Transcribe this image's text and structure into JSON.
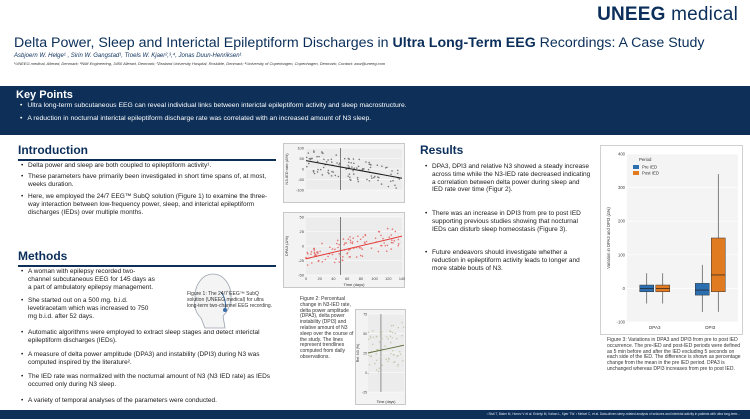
{
  "brand": {
    "logo_bold": "UNEEG",
    "logo_light": "medical"
  },
  "title": {
    "pre": "Delta Power, Sleep and Interictal Epileptiform Discharges in ",
    "hl": "Ultra Long-Term EEG",
    "post": " Recordings: A Case Study"
  },
  "authors": "Asbjoern W. Helge¹ , Sirin W. Gangstad¹, Troels W. Kjaer²,³,⁴, Jonas Duun-Henriksen¹",
  "affiliations": "¹UNEEG medical, Allerød, Denmark; ²NMI Engineering, 3450 Allerød, Denmark; ³Zealand University Hospital, Roskilde, Denmark; ⁴University of Copenhagen, Copenhagen, Denmark; Contact: asw@uneeg.com",
  "key_points": {
    "heading": "Key Points",
    "items": [
      "Ultra long-term subcutaneous EEG can reveal individual links between interictal epileptiform activity and sleep macrostructure.",
      "A reduction in nocturnal interictal epileptiform discharge rate was correlated with an increased amount of N3 sleep."
    ]
  },
  "introduction": {
    "heading": "Introduction",
    "items": [
      "Delta power and sleep are both coupled to epileptiform activity¹.",
      "These parameters have primarily been investigated in short time spans of, at most, weeks duration.",
      "Here, we employed the 24/7 EEG™ SubQ solution (Figure 1) to examine the three-way interaction between low-frequency power, sleep, and interictal epileptiform discharges (IEDs) over multiple months."
    ]
  },
  "methods": {
    "heading": "Methods",
    "items": [
      "A woman with epilepsy recorded two-channel subcutaneous EEG for 145 days as a part of ambulatory epilepsy management.",
      "She started out on a 500 mg. b.i.d. levetiracetam which was increased to 750 mg b.i.d. after 52 days.",
      "Automatic algorithms were employed to extract sleep stages and detect interictal epileptiform discharges (IEDs).",
      "A measure of delta power amplitude (DPA3) and instability (DPI3) during N3 was computed inspired by the literature².",
      "The IED rate was normalized with the nocturnal amount of N3 (N3 IED rate) as IEDs occurred only during N3 sleep.",
      "A variety of temporal analyses of the parameters were conducted."
    ],
    "fig1_caption": "Figure 1: The 24/7 EEG™ SubQ solution (UNEEG medical) for ultra long-term two-channel EEG recording."
  },
  "results": {
    "heading": "Results",
    "items": [
      "DPA3, DPI3 and relative N3 showed a steady increase across time while the N3-IED rate decreased indicating a correlation between delta power during sleep and IED rate over time (Figur 2).",
      "There was an increase in DPI3 from pre to post IED supporting previous studies showing that nocturnal IEDs can disturb sleep homeostasis (Figure 3).",
      "Future endeavors should investigate whether a reduction in epileptiform activity leads to longer and more stable bouts of N3."
    ],
    "fig2_caption": "Figure 2: Percentual change in N3-IED rate, delta power amplitude (DPA3), delta power instability (DPI3) and relative amount of N3 sleep over the course of the study. The lines represent trendlines computed from daily observations.",
    "fig3_caption": "Figure 3: Variations in DPA3 and DPI3 from pre to post IED occurrence. The pre-IED and post-IED periods were defined as 5 min before and after the IED excluding 5 seconds on each side of the IED. The difference is shown as percentage change from the mean in the pre IED period. DPA3 is unchanged whereas DPI3 increases from pre to post IED."
  },
  "figure2": {
    "xlabel": "Time (days)",
    "xticks": [
      "0",
      "20",
      "40",
      "60",
      "80",
      "100",
      "120",
      "140"
    ],
    "panels": [
      {
        "ylabel": "N3-IED rate (Δ%)",
        "yticks": [
          "100",
          "50",
          "0",
          "-50",
          "-100"
        ],
        "color": "#7a7a7a",
        "line": "#1a1a1a"
      },
      {
        "ylabel": "DPA3 (Δ%)",
        "yticks": [
          "50",
          "25",
          "0",
          "-25",
          "-50"
        ],
        "color": "#e57373",
        "line": "#e53935"
      },
      {
        "ylabel": "DPI3 (Δ%)",
        "yticks": [
          "50",
          "25",
          "0",
          "-25",
          "-50"
        ],
        "color": "#9e9e9e",
        "line": "#b23b3b"
      },
      {
        "ylabel": "Rel. N3 (%)",
        "yticks": [
          "75",
          "50",
          "25",
          "0",
          "-25"
        ],
        "color": "#bfc4a8",
        "line": "#5a6b35"
      }
    ]
  },
  "chart_data": {
    "type": "box",
    "title": "",
    "legend": {
      "title": "Period",
      "entries": [
        "Pre IED",
        "Post IED"
      ],
      "colors": [
        "#2c6fb0",
        "#e07b22"
      ],
      "placement": "top-left"
    },
    "categories": [
      "DPA3",
      "DPI3"
    ],
    "ylabel": "Variation in DPA3 and DPI3 (Δ%)",
    "ylim": [
      -100,
      400
    ],
    "yticks": [
      "400",
      "300",
      "200",
      "100",
      "0",
      "-100"
    ],
    "series": [
      {
        "name": "Pre IED",
        "boxes": [
          {
            "q1": -10,
            "median": 0,
            "q3": 10,
            "whislo": -45,
            "whishi": 45
          },
          {
            "q1": -20,
            "median": -5,
            "q3": 15,
            "whislo": -70,
            "whishi": 70
          }
        ]
      },
      {
        "name": "Post IED",
        "boxes": [
          {
            "q1": -10,
            "median": 0,
            "q3": 10,
            "whislo": -45,
            "whishi": 45
          },
          {
            "q1": -10,
            "median": 40,
            "q3": 150,
            "whislo": -70,
            "whishi": 340
          }
        ]
      }
    ]
  },
  "footer_ref": "¹ Sisti T, Bialer M, Honev V et al. Erdelyi M, Kahan L, Kjær TW. ² Meisel C, et al. Data-driven sleep-related analysis of seizures and interictal activity in patients with ultra long-term..."
}
